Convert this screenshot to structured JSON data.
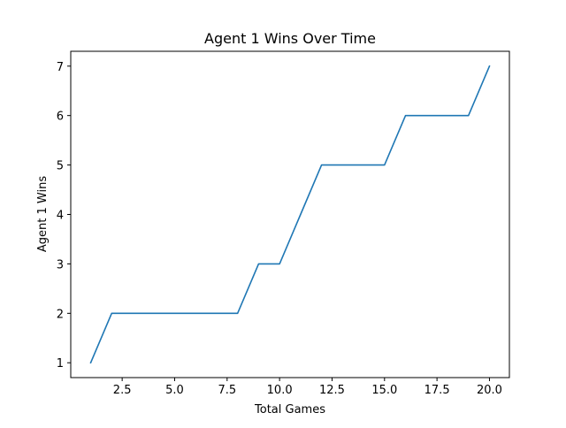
{
  "chart_data": {
    "type": "line",
    "title": "Agent 1 Wins Over Time",
    "xlabel": "Total Games",
    "ylabel": "Agent 1 Wins",
    "xlim": [
      0.05,
      20.95
    ],
    "ylim": [
      0.7,
      7.3
    ],
    "xticks": [
      2.5,
      5.0,
      7.5,
      10.0,
      12.5,
      15.0,
      17.5,
      20.0
    ],
    "xtick_labels": [
      "2.5",
      "5.0",
      "7.5",
      "10.0",
      "12.5",
      "15.0",
      "17.5",
      "20.0"
    ],
    "yticks": [
      1,
      2,
      3,
      4,
      5,
      6,
      7
    ],
    "ytick_labels": [
      "1",
      "2",
      "3",
      "4",
      "5",
      "6",
      "7"
    ],
    "grid": false,
    "series": [
      {
        "color": "#1f77b4",
        "x": [
          1,
          2,
          3,
          4,
          5,
          6,
          7,
          8,
          9,
          10,
          11,
          12,
          13,
          14,
          15,
          16,
          17,
          18,
          19,
          20
        ],
        "y": [
          1,
          2,
          2,
          2,
          2,
          2,
          2,
          2,
          3,
          3,
          4,
          5,
          5,
          5,
          5,
          6,
          6,
          6,
          6,
          7
        ]
      }
    ]
  }
}
